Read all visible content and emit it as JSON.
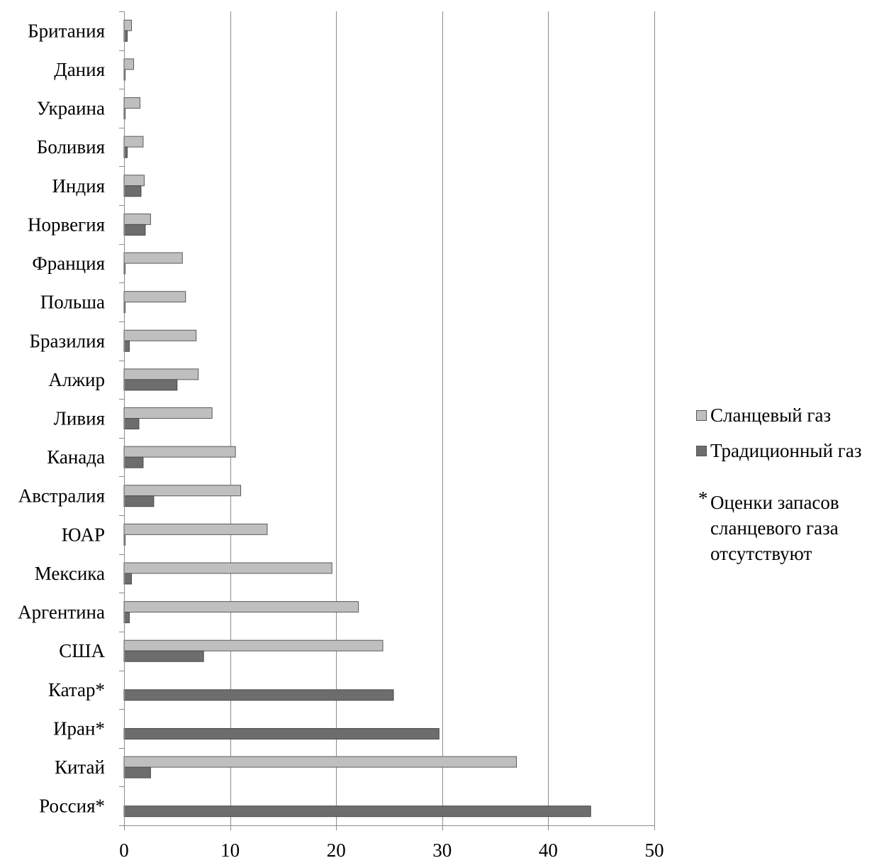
{
  "chart_data": {
    "type": "bar",
    "orientation": "horizontal",
    "categories": [
      "Британия",
      "Дания",
      "Украина",
      "Боливия",
      "Индия",
      "Норвегия",
      "Франция",
      "Польша",
      "Бразилия",
      "Алжир",
      "Ливия",
      "Канада",
      "Австралия",
      "ЮАР",
      "Мексика",
      "Аргентина",
      "США",
      "Катар*",
      "Иран*",
      "Китай",
      "Россия*"
    ],
    "series": [
      {
        "name": "Сланцевый газ",
        "color": "#bfbfbf",
        "values": [
          0.7,
          0.9,
          1.5,
          1.8,
          1.9,
          2.5,
          5.5,
          5.8,
          6.8,
          7.0,
          8.3,
          10.5,
          11.0,
          13.5,
          19.6,
          22.1,
          24.4,
          0,
          0,
          37.0,
          0
        ]
      },
      {
        "name": "Традиционный газ",
        "color": "#6d6d6d",
        "values": [
          0.3,
          0.1,
          0.1,
          0.3,
          1.6,
          2.0,
          0.1,
          0.1,
          0.5,
          5.0,
          1.4,
          1.8,
          2.8,
          0.1,
          0.7,
          0.5,
          7.5,
          25.4,
          29.7,
          2.5,
          44.0
        ]
      }
    ],
    "xlim": [
      0,
      50
    ],
    "xticks": [
      0,
      10,
      20,
      30,
      40,
      50
    ],
    "grid": "vertical",
    "legend_position": "right"
  },
  "legend": {
    "shale_label": "Сланцевый газ",
    "conventional_label": "Традиционный газ",
    "note_star": "*",
    "note_text": "Оценки запасов сланцевого газа отсутствуют"
  }
}
